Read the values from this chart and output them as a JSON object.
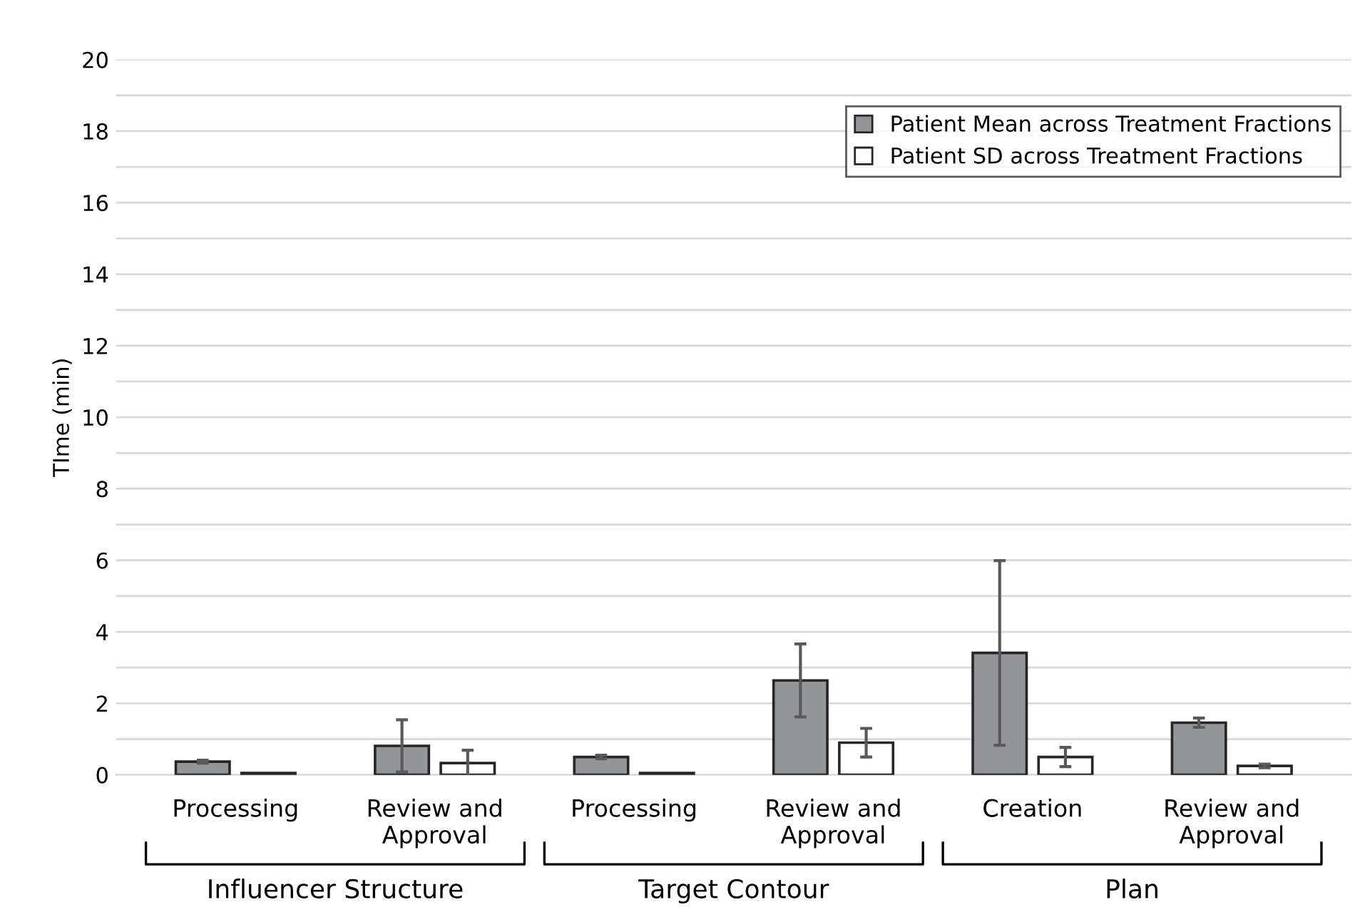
{
  "chart_data": {
    "type": "bar",
    "ylabel": "TIme (min)",
    "categories": [
      "Processing",
      "Review and\nApproval",
      "Processing",
      "Review and\nApproval",
      "Creation",
      "Review and\nApproval"
    ],
    "series": [
      {
        "name": "Patient Mean across Treatment Fractions",
        "color": "#939598",
        "values": [
          0.37,
          0.81,
          0.5,
          2.64,
          3.41,
          1.46
        ],
        "errors": [
          0.04,
          0.73,
          0.05,
          1.02,
          2.58,
          0.13
        ]
      },
      {
        "name": "Patient SD across Treatment Fractions",
        "color": "#ffffff",
        "values": [
          0.05,
          0.33,
          0.05,
          0.9,
          0.5,
          0.25
        ],
        "errors": [
          null,
          0.36,
          null,
          0.4,
          0.27,
          0.05
        ]
      }
    ],
    "annotations": [
      "Influencer Structure",
      "Target Contour",
      "Plan"
    ],
    "ylim": [
      0,
      20
    ],
    "yticks": [
      0,
      {
        "value": 1,
        "label": null
      },
      2,
      {
        "value": 3,
        "label": null
      },
      4,
      {
        "value": 5,
        "label": null
      },
      6,
      {
        "value": 7,
        "label": null
      },
      8,
      {
        "value": 9,
        "label": null
      },
      10,
      {
        "value": 11,
        "label": null
      },
      12,
      {
        "value": 13,
        "label": null
      },
      14,
      {
        "value": 15,
        "label": null
      },
      16,
      {
        "value": 17,
        "label": null
      },
      18,
      {
        "value": 19,
        "label": null
      },
      20
    ],
    "grid": "y",
    "legend": "top right"
  }
}
